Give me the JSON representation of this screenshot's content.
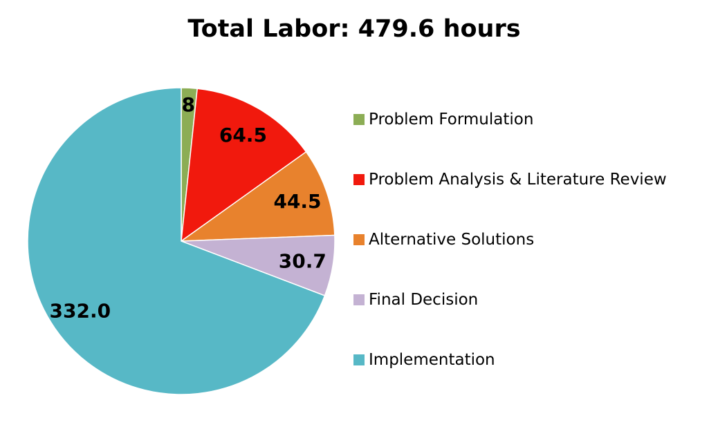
{
  "page": {
    "background_color": "#ffffff"
  },
  "chart_data": {
    "type": "pie",
    "title": "Total Labor: 479.6 hours",
    "total_hours_shown": "479.6",
    "slices": [
      {
        "label": "Problem Formulation",
        "value": 8,
        "value_label": "8",
        "color": "#8cad55"
      },
      {
        "label": "Problem Analysis & Literature Review",
        "value": 64.5,
        "value_label": "64.5",
        "color": "#f1190d"
      },
      {
        "label": "Alternative Solutions",
        "value": 44.5,
        "value_label": "44.5",
        "color": "#e8822d"
      },
      {
        "label": "Final Decision",
        "value": 30.7,
        "value_label": "30.7",
        "color": "#c4b2d3"
      },
      {
        "label": "Implementation",
        "value": 332.0,
        "value_label": "332.0",
        "color": "#57b8c6"
      }
    ],
    "start_angle_deg": 0,
    "direction": "clockwise",
    "legend_position": "right",
    "slice_labels": "values-inside",
    "label_text_color": "#000000",
    "title_text_color": "#000000"
  }
}
